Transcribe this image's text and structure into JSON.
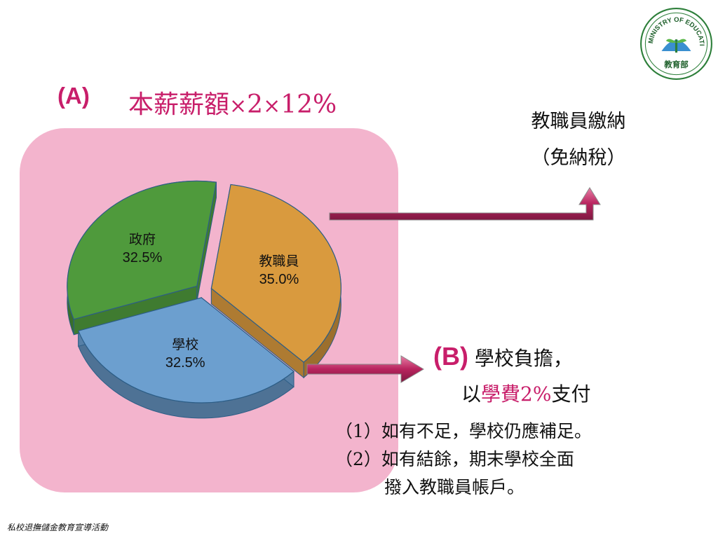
{
  "header": {
    "label_a": "(A)",
    "formula_part1": "本薪薪額",
    "formula_mul1": "×",
    "formula_two": "2",
    "formula_mul2": "×",
    "formula_pct": "12%"
  },
  "chart_data": {
    "type": "pie",
    "slices": [
      {
        "label": "教職員",
        "value": 35.0,
        "value_label": "35.0%",
        "color": "#d99a3e"
      },
      {
        "label": "學校",
        "value": 32.5,
        "value_label": "32.5%",
        "color": "#6c9fcf"
      },
      {
        "label": "政府",
        "value": 32.5,
        "value_label": "32.5%",
        "color": "#4f9a3c"
      }
    ]
  },
  "right_top": {
    "line1": "教職員繳納",
    "line2": "（免納稅）"
  },
  "section_b": {
    "label": "(B)",
    "line1_text": "學校負擔，",
    "line2_prefix": "以",
    "line2_highlight": "學費2%",
    "line2_suffix": "支付"
  },
  "notes": {
    "note1_num": "（1）",
    "note1_text": "如有不足，學校仍應補足。",
    "note2_num": "（2）",
    "note2_text": "如有結餘，期末學校全面",
    "note2_cont": "撥入教職員帳戶。"
  },
  "footer": {
    "text": "私校退撫儲金教育宣導活動"
  },
  "logo": {
    "text": "MINISTRY OF EDUCATION",
    "zh": "教育部",
    "icon": "ministry-of-education-logo"
  },
  "colors": {
    "accent": "#c81e6a",
    "panel": "#f3b4cd"
  }
}
